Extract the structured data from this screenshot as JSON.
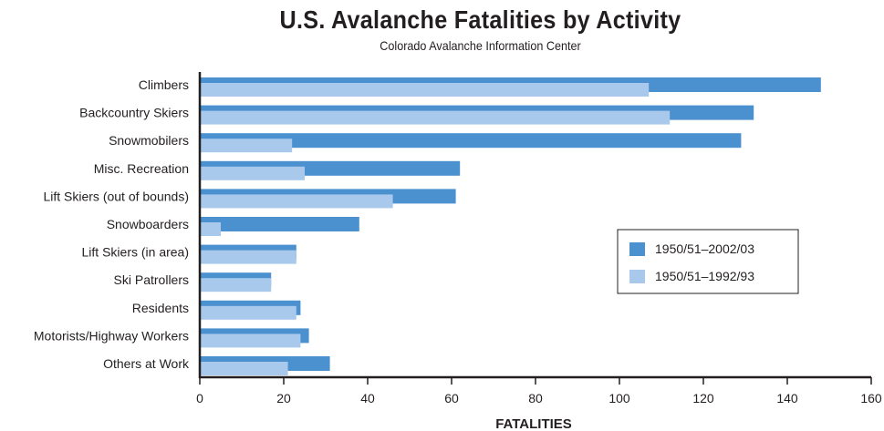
{
  "chart_data": {
    "type": "bar",
    "orientation": "horizontal",
    "title": "U.S. Avalanche Fatalities by Activity",
    "subtitle": "Colorado Avalanche Information Center",
    "xlabel": "FATALITIES",
    "ylabel": "",
    "xlim": [
      0,
      160
    ],
    "xticks": [
      0,
      20,
      40,
      60,
      80,
      100,
      120,
      140,
      160
    ],
    "grid": false,
    "legend_position": "right",
    "categories": [
      "Climbers",
      "Backcountry Skiers",
      "Snowmobilers",
      "Misc. Recreation",
      "Lift Skiers (out of bounds)",
      "Snowboarders",
      "Lift Skiers (in area)",
      "Ski Patrollers",
      "Residents",
      "Motorists/Highway Workers",
      "Others at Work"
    ],
    "series": [
      {
        "name": "1950/51–2002/03",
        "color": "#4b90cf",
        "values": [
          148,
          132,
          129,
          62,
          61,
          38,
          23,
          17,
          24,
          26,
          31
        ]
      },
      {
        "name": "1950/51–1992/93",
        "color": "#a8c8ec",
        "values": [
          107,
          112,
          22,
          25,
          46,
          5,
          23,
          17,
          23,
          24,
          21
        ]
      }
    ]
  }
}
